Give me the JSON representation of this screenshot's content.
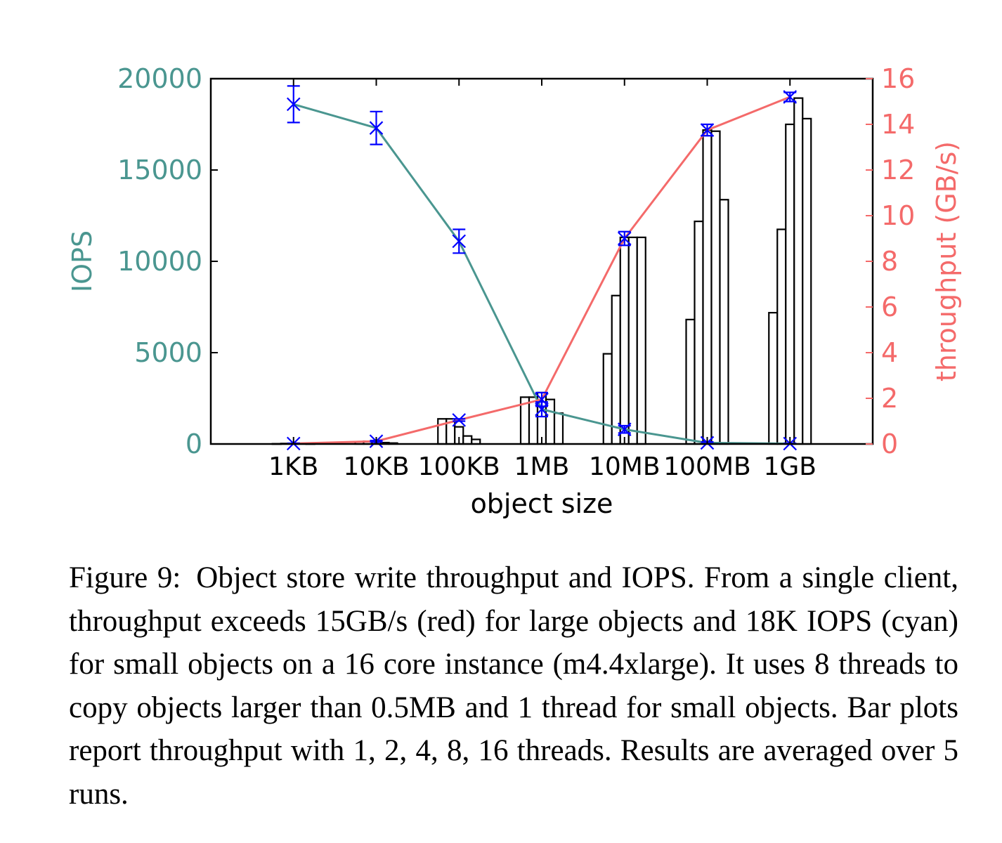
{
  "chart_data": {
    "type": "bar",
    "title": "",
    "xlabel": "object size",
    "ylabel_left": "IOPS",
    "ylabel_right": "throughput (GB/s)",
    "categories": [
      "1KB",
      "10KB",
      "100KB",
      "1MB",
      "10MB",
      "100MB",
      "1GB"
    ],
    "ylim_left": [
      0,
      20000
    ],
    "ylim_right": [
      0,
      16
    ],
    "yticks_left": [
      "0",
      "5000",
      "10000",
      "15000",
      "20000"
    ],
    "yticks_right": [
      "0",
      "2",
      "4",
      "6",
      "8",
      "10",
      "12",
      "14",
      "16"
    ],
    "grid": false,
    "bars": {
      "axis": "right",
      "thread_counts": [
        1,
        2,
        4,
        8,
        16
      ],
      "values": [
        [
          0.01,
          0.02,
          0.02,
          0.02,
          0.01
        ],
        [
          0.1,
          0.12,
          0.1,
          0.06,
          0.04
        ],
        [
          1.1,
          1.1,
          0.75,
          0.35,
          0.2
        ],
        [
          2.05,
          2.05,
          2.25,
          1.95,
          1.35
        ],
        [
          3.95,
          6.5,
          9.05,
          9.05,
          9.05
        ],
        [
          5.45,
          9.75,
          13.75,
          13.7,
          10.7
        ],
        [
          5.75,
          9.4,
          14.0,
          15.15,
          14.25
        ]
      ],
      "fill": "#ffffff",
      "stroke": "#000000"
    },
    "series": [
      {
        "axis": "left",
        "color": "#4a9690",
        "values": [
          18600,
          17300,
          11100,
          1900,
          800,
          60,
          20
        ],
        "error": [
          1000,
          900,
          650,
          400,
          200,
          50,
          20
        ]
      },
      {
        "axis": "right",
        "color": "#f46a6a",
        "values": [
          0.02,
          0.12,
          1.05,
          1.95,
          9.0,
          13.75,
          15.2
        ],
        "error": [
          0.01,
          0.03,
          0.05,
          0.3,
          0.3,
          0.25,
          0.2
        ]
      }
    ],
    "marker_color": "#0000ff"
  },
  "caption": {
    "label": "Figure 9:",
    "text": "Object store write throughput and IOPS. From a single client, throughput exceeds 15GB/s (red) for large objects and 18K IOPS (cyan) for small objects on a 16 core instance (m4.4xlarge). It uses 8 threads to copy objects larger than 0.5MB and 1 thread for small objects. Bar plots report throughput with 1, 2, 4, 8, 16 threads. Results are averaged over 5 runs."
  }
}
